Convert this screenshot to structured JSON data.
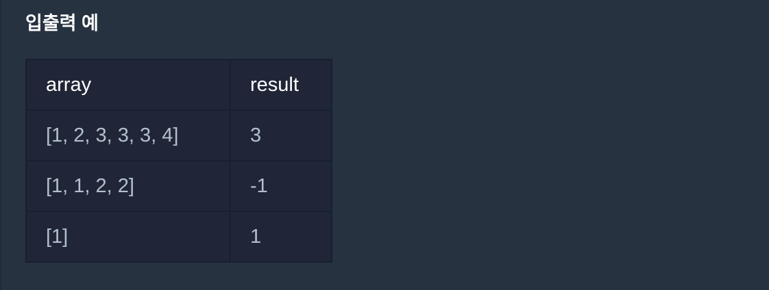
{
  "section": {
    "title": "입출력 예"
  },
  "table": {
    "headers": [
      "array",
      "result"
    ],
    "rows": [
      [
        "[1, 2, 3, 3, 3, 4]",
        "3"
      ],
      [
        "[1, 1, 2, 2]",
        "-1"
      ],
      [
        "[1]",
        "1"
      ]
    ]
  },
  "colors": {
    "background": "#263240",
    "table_bg": "#202637",
    "header_text": "#ffffff",
    "cell_text": "#b2c0cc"
  }
}
